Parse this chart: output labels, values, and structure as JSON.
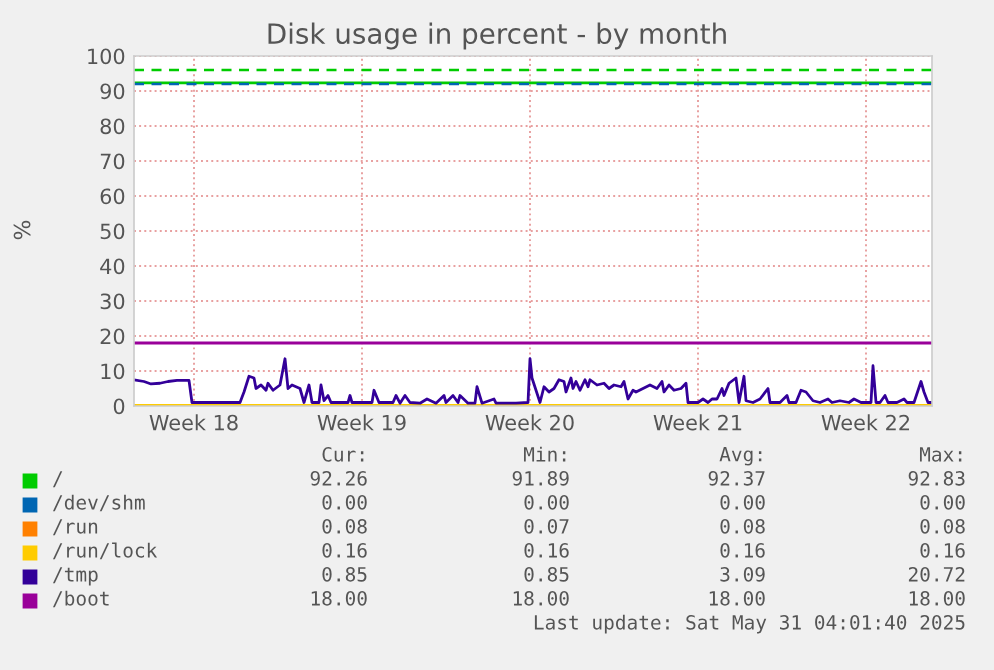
{
  "chart_data": {
    "type": "line",
    "title": "Disk usage in percent - by month",
    "ylabel": "%",
    "xlim": [
      "2025-04-28T00:00",
      "2025-05-31T06:00"
    ],
    "xticks": [
      {
        "value": "2025-04-30T12:00",
        "label": "Week 18"
      },
      {
        "value": "2025-05-07T12:00",
        "label": "Week 19"
      },
      {
        "value": "2025-05-14T12:00",
        "label": "Week 20"
      },
      {
        "value": "2025-05-21T12:00",
        "label": "Week 21"
      },
      {
        "value": "2025-05-28T12:00",
        "label": "Week 22"
      }
    ],
    "ylim": [
      0,
      100
    ],
    "yticks": [
      0,
      10,
      20,
      30,
      40,
      50,
      60,
      70,
      80,
      90,
      100
    ],
    "grid": true,
    "legend": "bottom",
    "ref_lines": [
      {
        "axis": "y",
        "value": 96,
        "color": "#00cc00",
        "line_style": "dashed"
      },
      {
        "axis": "y",
        "value": 92,
        "color": "#0066b3",
        "line_style": "dashed"
      }
    ],
    "series": [
      {
        "name": "/",
        "color": "#00cc00",
        "x": [
          "2025-04-28T00:00",
          "2025-05-31T06:00"
        ],
        "values": [
          92.3,
          92.3
        ]
      },
      {
        "name": "/dev/shm",
        "color": "#0066b3"
      },
      {
        "name": "/run",
        "color": "#ff8000"
      },
      {
        "name": "/run/lock",
        "color": "#ffcc00",
        "x": [
          "2025-04-28T00:00",
          "2025-05-31T06:00"
        ],
        "values": [
          0.2,
          0.2
        ]
      },
      {
        "name": "/tmp",
        "color": "#330099",
        "x": [
          "2025-04-28T00:00",
          "2025-04-28T10:00",
          "2025-04-28T17:00",
          "2025-04-29T02:00",
          "2025-04-29T10:00",
          "2025-04-29T19:00",
          "2025-04-30T07:00",
          "2025-04-30T10:00",
          "2025-05-02T10:00",
          "2025-05-02T14:00",
          "2025-05-02T19:00",
          "2025-05-03T00:00",
          "2025-05-03T02:00",
          "2025-05-03T07:00",
          "2025-05-03T12:00",
          "2025-05-03T14:00",
          "2025-05-03T19:00",
          "2025-05-04T02:00",
          "2025-05-04T07:00",
          "2025-05-04T10:00",
          "2025-05-04T14:00",
          "2025-05-04T22:00",
          "2025-05-05T02:00",
          "2025-05-05T07:00",
          "2025-05-05T10:00",
          "2025-05-05T17:00",
          "2025-05-05T19:00",
          "2025-05-05T22:00",
          "2025-05-06T02:00",
          "2025-05-06T05:00",
          "2025-05-06T22:00",
          "2025-05-07T00:00",
          "2025-05-07T02:00",
          "2025-05-07T22:00",
          "2025-05-08T00:00",
          "2025-05-08T05:00",
          "2025-05-08T19:00",
          "2025-05-08T22:00",
          "2025-05-09T02:00",
          "2025-05-09T07:00",
          "2025-05-09T12:00",
          "2025-05-09T22:00",
          "2025-05-10T05:00",
          "2025-05-10T14:00",
          "2025-05-10T22:00",
          "2025-05-11T00:00",
          "2025-05-11T07:00",
          "2025-05-11T12:00",
          "2025-05-11T14:00",
          "2025-05-11T22:00",
          "2025-05-12T05:00",
          "2025-05-12T07:00",
          "2025-05-12T12:00",
          "2025-05-13T00:00",
          "2025-05-13T02:00",
          "2025-05-13T12:00",
          "2025-05-13T22:00",
          "2025-05-14T10:00",
          "2025-05-14T12:00",
          "2025-05-14T14:00",
          "2025-05-14T22:00",
          "2025-05-15T02:00",
          "2025-05-15T07:00",
          "2025-05-15T12:00",
          "2025-05-15T17:00",
          "2025-05-15T22:00",
          "2025-05-16T00:00",
          "2025-05-16T05:00",
          "2025-05-16T07:00",
          "2025-05-16T10:00",
          "2025-05-16T14:00",
          "2025-05-16T19:00",
          "2025-05-16T22:00",
          "2025-05-17T00:00",
          "2025-05-17T07:00",
          "2025-05-17T14:00",
          "2025-05-17T19:00",
          "2025-05-18T00:00",
          "2025-05-18T07:00",
          "2025-05-18T10:00",
          "2025-05-18T14:00",
          "2025-05-18T19:00",
          "2025-05-18T22:00",
          "2025-05-19T05:00",
          "2025-05-19T12:00",
          "2025-05-19T19:00",
          "2025-05-20T00:00",
          "2025-05-20T02:00",
          "2025-05-20T07:00",
          "2025-05-20T12:00",
          "2025-05-20T19:00",
          "2025-05-21T00:00",
          "2025-05-21T02:00",
          "2025-05-21T12:00",
          "2025-05-21T17:00",
          "2025-05-21T22:00",
          "2025-05-22T02:00",
          "2025-05-22T07:00",
          "2025-05-22T12:00",
          "2025-05-22T14:00",
          "2025-05-22T19:00",
          "2025-05-23T02:00",
          "2025-05-23T05:00",
          "2025-05-23T10:00",
          "2025-05-23T12:00",
          "2025-05-23T19:00",
          "2025-05-24T02:00",
          "2025-05-24T10:00",
          "2025-05-24T12:00",
          "2025-05-24T22:00",
          "2025-05-25T05:00",
          "2025-05-25T07:00",
          "2025-05-25T14:00",
          "2025-05-25T19:00",
          "2025-05-26T00:00",
          "2025-05-26T07:00",
          "2025-05-26T14:00",
          "2025-05-26T22:00",
          "2025-05-27T02:00",
          "2025-05-27T10:00",
          "2025-05-27T19:00",
          "2025-05-28T00:00",
          "2025-05-28T07:00",
          "2025-05-28T17:00",
          "2025-05-28T19:00",
          "2025-05-28T22:00",
          "2025-05-29T02:00",
          "2025-05-29T07:00",
          "2025-05-29T10:00",
          "2025-05-29T19:00",
          "2025-05-30T02:00",
          "2025-05-30T05:00",
          "2025-05-30T12:00",
          "2025-05-30T19:00",
          "2025-05-30T22:00",
          "2025-05-31T02:00",
          "2025-05-31T05:00"
        ],
        "values": [
          7.5,
          7,
          6.3,
          6.5,
          7,
          7.3,
          7.3,
          1,
          1,
          4,
          8.5,
          8,
          5,
          6,
          4.5,
          6.5,
          4.5,
          6,
          13.5,
          5,
          6,
          5,
          1,
          6,
          1,
          1,
          6,
          1.5,
          3,
          1,
          1,
          3,
          1,
          1,
          4.5,
          1,
          1,
          3,
          0.8,
          3,
          1,
          0.8,
          2,
          0.8,
          3,
          1,
          3,
          1,
          3,
          0.8,
          0.8,
          5.5,
          0.8,
          2,
          0.8,
          0.8,
          0.8,
          1,
          13.5,
          8,
          1,
          5.5,
          4,
          5,
          7.5,
          7,
          4,
          8,
          5,
          7,
          4.5,
          7.5,
          5.5,
          7.5,
          6,
          6.5,
          5,
          6,
          5.5,
          7,
          2,
          4.5,
          4,
          5,
          6,
          5,
          7,
          4,
          6,
          4.5,
          5,
          6.5,
          1,
          1,
          2,
          1,
          2,
          2,
          5,
          3,
          6.5,
          8,
          1,
          8.5,
          1.5,
          1,
          2,
          5,
          1,
          1,
          3,
          1,
          1,
          4.5,
          4,
          1.5,
          1,
          2,
          1,
          1.5,
          1,
          2,
          1,
          1,
          11.5,
          1,
          1,
          3,
          1,
          1,
          2,
          1,
          1,
          7,
          4,
          1,
          1
        ]
      },
      {
        "name": "/boot",
        "color": "#990099",
        "x": [
          "2025-04-28T00:00",
          "2025-05-31T06:00"
        ],
        "values": [
          18,
          18
        ]
      }
    ],
    "annotations": [
      "Cur:",
      "Min:",
      "Avg:",
      "Max:",
      "92.26",
      "91.89",
      "92.37",
      "92.83",
      "0.00",
      "0.00",
      "0.00",
      "0.00",
      "0.08",
      "0.07",
      "0.08",
      "0.08",
      "0.16",
      "0.16",
      "0.16",
      "0.16",
      "0.85",
      "0.85",
      "3.09",
      "20.72",
      "18.00",
      "18.00",
      "18.00",
      "18.00",
      "Last update: Sat May 31 04:01:40 2025"
    ]
  }
}
